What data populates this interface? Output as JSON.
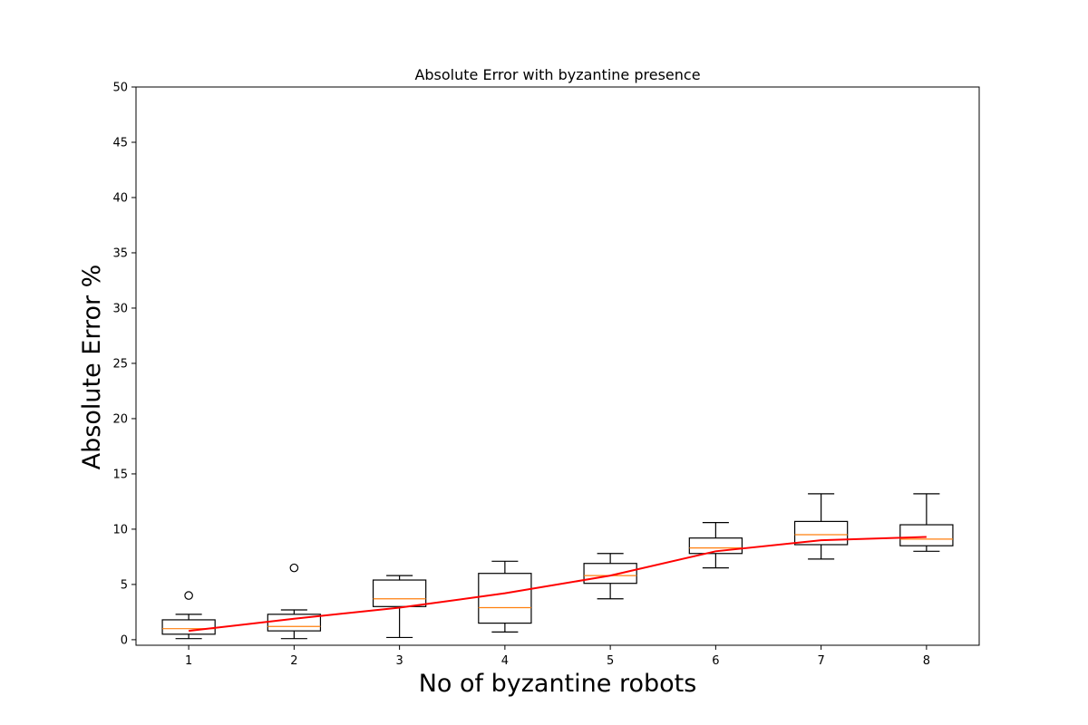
{
  "chart_data": {
    "type": "boxplot",
    "title": "Absolute Error with byzantine presence",
    "xlabel": "No of byzantine robots",
    "ylabel": "Absolute Error %",
    "ylim": [
      -0.5,
      50
    ],
    "xlim": [
      0.5,
      8.5
    ],
    "yticks": [
      0,
      5,
      10,
      15,
      20,
      25,
      30,
      35,
      40,
      45,
      50
    ],
    "categories": [
      "1",
      "2",
      "3",
      "4",
      "5",
      "6",
      "7",
      "8"
    ],
    "grid": false,
    "boxes": [
      {
        "x": 1,
        "whisker_low": 0.1,
        "q1": 0.5,
        "median": 1.0,
        "q3": 1.8,
        "whisker_high": 2.3,
        "outliers": [
          4.0
        ]
      },
      {
        "x": 2,
        "whisker_low": 0.1,
        "q1": 0.8,
        "median": 1.2,
        "q3": 2.3,
        "whisker_high": 2.7,
        "outliers": [
          6.5
        ]
      },
      {
        "x": 3,
        "whisker_low": 0.2,
        "q1": 3.0,
        "median": 3.7,
        "q3": 5.4,
        "whisker_high": 5.8,
        "outliers": []
      },
      {
        "x": 4,
        "whisker_low": 0.7,
        "q1": 1.5,
        "median": 2.9,
        "q3": 6.0,
        "whisker_high": 7.1,
        "outliers": []
      },
      {
        "x": 5,
        "whisker_low": 3.7,
        "q1": 5.1,
        "median": 5.8,
        "q3": 6.9,
        "whisker_high": 7.8,
        "outliers": []
      },
      {
        "x": 6,
        "whisker_low": 6.5,
        "q1": 7.8,
        "median": 8.3,
        "q3": 9.2,
        "whisker_high": 10.6,
        "outliers": []
      },
      {
        "x": 7,
        "whisker_low": 7.3,
        "q1": 8.6,
        "median": 9.5,
        "q3": 10.7,
        "whisker_high": 13.2,
        "outliers": []
      },
      {
        "x": 8,
        "whisker_low": 8.0,
        "q1": 8.5,
        "median": 9.1,
        "q3": 10.4,
        "whisker_high": 13.2,
        "outliers": []
      }
    ],
    "trend_line": {
      "x": [
        1,
        2,
        3,
        4,
        5,
        6,
        7,
        8
      ],
      "y": [
        0.8,
        1.9,
        2.9,
        4.2,
        5.8,
        8.0,
        9.0,
        9.3
      ],
      "color": "#ff0000"
    },
    "colors": {
      "box": "#000000",
      "median": "#ff7f0e",
      "trend": "#ff0000"
    }
  }
}
